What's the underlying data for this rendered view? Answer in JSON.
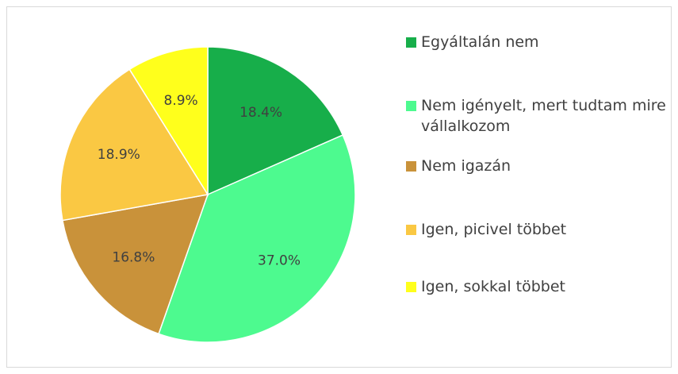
{
  "chart_data": {
    "type": "pie",
    "categories": [
      "Egyáltalán nem",
      "Nem igényelt, mert tudtam mire vállalkozom",
      "Nem igazán",
      "Igen, picivel többet",
      "Igen, sokkal többet"
    ],
    "values": [
      18.4,
      37.0,
      16.8,
      18.9,
      8.9
    ],
    "value_labels": [
      "18.4%",
      "37.0%",
      "16.8%",
      "18.9%",
      "8.9%"
    ],
    "colors": [
      "#17ae4a",
      "#4dfa8f",
      "#c9923a",
      "#fac843",
      "#ffff1c"
    ],
    "legend": "right"
  }
}
